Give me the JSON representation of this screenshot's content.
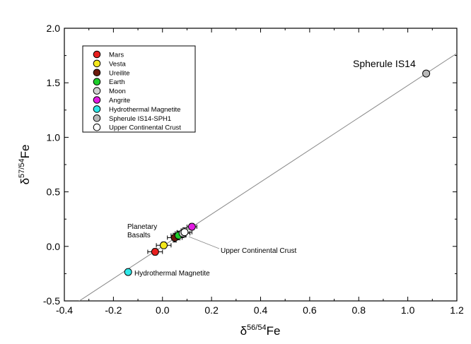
{
  "chart_data": {
    "type": "scatter",
    "xlabel": {
      "base": "δ",
      "sup": "56/54",
      "tail": "Fe"
    },
    "ylabel": {
      "base": "δ",
      "sup": "57/54",
      "tail": "Fe"
    },
    "xlim": [
      -0.4,
      1.2
    ],
    "ylim": [
      -0.5,
      2.0
    ],
    "xticks": [
      "-0.4",
      "-0.2",
      "0.0",
      "0.2",
      "0.4",
      "0.6",
      "0.8",
      "1.0",
      "1.2"
    ],
    "yticks": [
      "-0.5",
      "0.0",
      "0.5",
      "1.0",
      "1.5",
      "2.0"
    ],
    "grid": false,
    "legend_position": "top-left",
    "reference_line": {
      "slope": 1.475,
      "intercept": 0.0
    },
    "series": [
      {
        "name": "Mars",
        "color": "#e8201f",
        "points": [
          {
            "x": -0.03,
            "y": -0.05,
            "xerr": 0.03,
            "yerr": 0.03
          }
        ]
      },
      {
        "name": "Vesta",
        "color": "#f4e81c",
        "points": [
          {
            "x": 0.005,
            "y": 0.01,
            "xerr": 0.03,
            "yerr": 0.03
          }
        ]
      },
      {
        "name": "Ureilite",
        "color": "#6b1a0c",
        "points": [
          {
            "x": 0.05,
            "y": 0.08,
            "xerr": 0.03,
            "yerr": 0.04
          }
        ]
      },
      {
        "name": "Earth",
        "color": "#1dcd2a",
        "points": [
          {
            "x": 0.065,
            "y": 0.1,
            "xerr": 0.03,
            "yerr": 0.04
          }
        ]
      },
      {
        "name": "Moon",
        "color": "#d0d0d0",
        "points": [
          {
            "x": 0.082,
            "y": 0.12,
            "xerr": 0.03,
            "yerr": 0.04
          }
        ]
      },
      {
        "name": "Angrite",
        "color": "#e21be2",
        "points": [
          {
            "x": 0.12,
            "y": 0.18,
            "xerr": 0.02,
            "yerr": 0.03
          }
        ]
      },
      {
        "name": "Hydrothermal Magnetite",
        "color": "#2ee8e8",
        "points": [
          {
            "x": -0.14,
            "y": -0.235,
            "xerr": 0.0,
            "yerr": 0.0
          }
        ]
      },
      {
        "name": "Spherule IS14-SPH1",
        "color": "#b8b8b8",
        "points": [
          {
            "x": 1.075,
            "y": 1.585,
            "xerr": 0.0,
            "yerr": 0.0
          }
        ]
      },
      {
        "name": "Upper Continental Crust",
        "color": "#ffffff",
        "points": [
          {
            "x": 0.09,
            "y": 0.13,
            "xerr": 0.03,
            "yerr": 0.04
          }
        ]
      }
    ],
    "annotations": [
      {
        "id": "spherule",
        "lines": [
          "Spherule IS14"
        ]
      },
      {
        "id": "basalts",
        "lines": [
          "Planetary",
          "Basalts"
        ]
      },
      {
        "id": "ucc",
        "lines": [
          "Upper Continental Crust"
        ]
      },
      {
        "id": "magnetite",
        "lines": [
          "Hydrothermal Magnetite"
        ]
      }
    ]
  }
}
